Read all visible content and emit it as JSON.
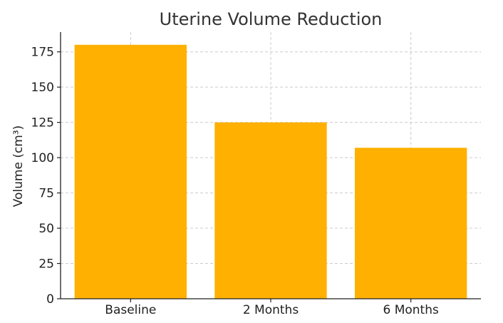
{
  "chart_data": {
    "type": "bar",
    "title": "Uterine Volume Reduction",
    "xlabel": "",
    "ylabel": "Volume (cm³)",
    "categories": [
      "Baseline",
      "2 Months",
      "6 Months"
    ],
    "values": [
      180,
      125,
      107
    ],
    "ylim": [
      0,
      189
    ],
    "yticks": [
      0,
      25,
      50,
      75,
      100,
      125,
      150,
      175
    ],
    "grid": true,
    "bar_color": "#FFB000"
  }
}
